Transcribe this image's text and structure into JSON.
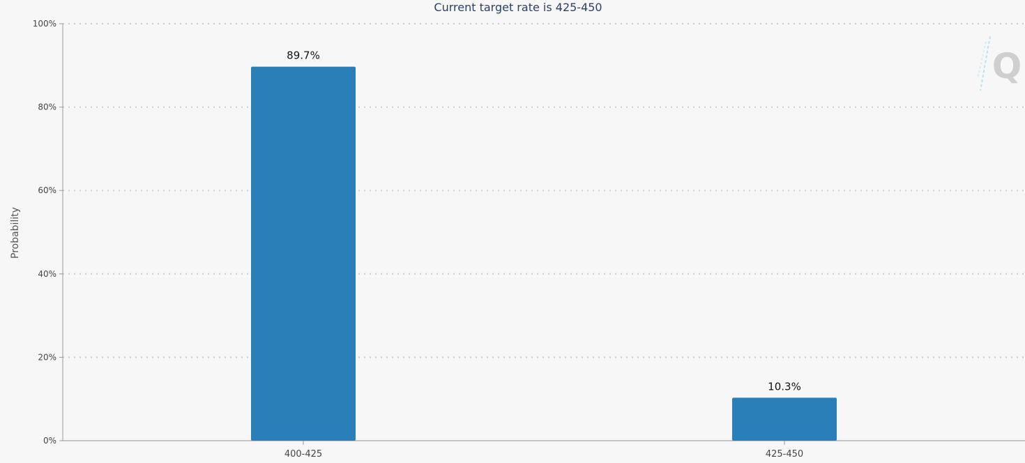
{
  "chart_data": {
    "type": "bar",
    "title": "Current target rate is 425-450",
    "xlabel": "",
    "ylabel": "Probability",
    "categories": [
      "400-425",
      "425-450"
    ],
    "values": [
      89.7,
      10.3
    ],
    "data_labels": [
      "89.7%",
      "10.3%"
    ],
    "y_ticks": [
      "0%",
      "20%",
      "40%",
      "60%",
      "80%",
      "100%"
    ],
    "ylim": [
      0,
      100
    ],
    "grid": true,
    "legend": "none",
    "bar_color": "#2b7fb8",
    "grid_color": "#cccccc"
  },
  "watermark": {
    "icon": "cme-quikstrike-q-logo",
    "letter": "Q"
  }
}
